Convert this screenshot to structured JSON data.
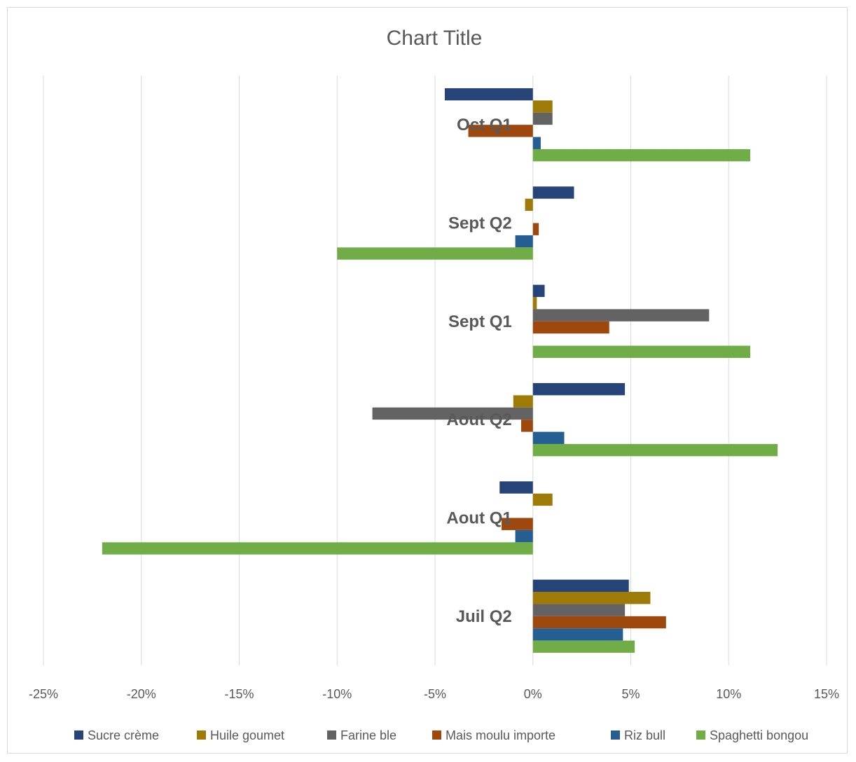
{
  "chart_data": {
    "type": "bar",
    "orientation": "horizontal",
    "title": "Chart Title",
    "xlabel": "",
    "ylabel": "",
    "xlim": [
      -0.25,
      0.15
    ],
    "x_ticks": [
      -0.25,
      -0.2,
      -0.15,
      -0.1,
      -0.05,
      0,
      0.05,
      0.1,
      0.15
    ],
    "x_tick_labels": [
      "-25%",
      "-20%",
      "-15%",
      "-10%",
      "-5%",
      "0%",
      "5%",
      "10%",
      "15%"
    ],
    "grid": "vertical",
    "legend_position": "bottom",
    "categories": [
      "Juil Q2",
      "Aout Q1",
      "Aout Q2",
      "Sept Q1",
      "Sept Q2",
      "Oct Q1"
    ],
    "series": [
      {
        "name": "Sucre crème",
        "color": "#264478",
        "values": [
          0.049,
          -0.017,
          0.047,
          0.006,
          0.021,
          -0.045
        ]
      },
      {
        "name": "Huile goumet",
        "color": "#9E7B06",
        "values": [
          0.06,
          0.01,
          -0.01,
          0.002,
          -0.004,
          0.01
        ]
      },
      {
        "name": "Farine ble",
        "color": "#636363",
        "values": [
          0.047,
          0.0,
          -0.082,
          0.09,
          0.0,
          0.01
        ]
      },
      {
        "name": "Mais moulu importe",
        "color": "#9E480E",
        "values": [
          0.068,
          -0.016,
          -0.006,
          0.039,
          0.003,
          -0.033
        ]
      },
      {
        "name": "Riz bull",
        "color": "#255E91",
        "values": [
          0.046,
          -0.009,
          0.016,
          0.0,
          -0.009,
          0.004
        ]
      },
      {
        "name": "Spaghetti bongou",
        "color": "#70AD47",
        "values": [
          0.052,
          -0.22,
          0.125,
          0.111,
          -0.1,
          0.111
        ]
      }
    ]
  }
}
